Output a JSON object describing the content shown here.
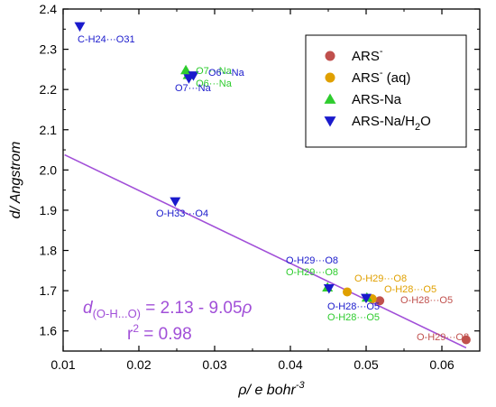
{
  "chart_data": {
    "type": "scatter",
    "xlim": [
      0.01,
      0.065
    ],
    "ylim": [
      1.55,
      2.4
    ],
    "x_ticks": [
      "0.01",
      "0.02",
      "0.03",
      "0.04",
      "0.05",
      "0.06"
    ],
    "y_ticks": [
      "1.6",
      "1.7",
      "1.8",
      "1.9",
      "2.0",
      "2.1",
      "2.2",
      "2.3",
      "2.4"
    ],
    "xlabel": "ρ/ e bohr",
    "xlabel_sup": "-3",
    "ylabel": "d/ Angstrom",
    "grid": false,
    "legend_position": "top-right",
    "series": [
      {
        "name": "ARS",
        "name_sup": "-",
        "name_sub": "",
        "name_after": "",
        "marker": "circle",
        "color": "#c0504d",
        "points": [
          {
            "x": 0.0518,
            "y": 1.675,
            "label": "O-H28···O5",
            "label_color": "#c0504d"
          },
          {
            "x": 0.0632,
            "y": 1.578,
            "label": "O-H29···O8",
            "label_color": "#c0504d"
          }
        ]
      },
      {
        "name": "ARS",
        "name_sup": "-",
        "name_sub": "",
        "name_after": " (aq)",
        "marker": "circle",
        "color": "#e0a000",
        "points": [
          {
            "x": 0.0475,
            "y": 1.697,
            "label": "O-H29···O8",
            "label_color": "#e0a000"
          },
          {
            "x": 0.0508,
            "y": 1.68,
            "label": "O-H28···O5",
            "label_color": "#e0a000"
          }
        ]
      },
      {
        "name": "ARS-Na",
        "name_sup": "",
        "name_sub": "",
        "name_after": "",
        "marker": "triangle-up",
        "color": "#2ecc2e",
        "points": [
          {
            "x": 0.0262,
            "y": 2.248,
            "label": "O7···Na",
            "label_color": "#2ecc2e"
          },
          {
            "x": 0.0265,
            "y": 2.236,
            "label": "O6···Na",
            "label_color": "#2ecc2e"
          },
          {
            "x": 0.0449,
            "y": 1.708,
            "label": "O-H29···O8",
            "label_color": "#2ecc2e"
          },
          {
            "x": 0.0501,
            "y": 1.683,
            "label": "O-H28···O5",
            "label_color": "#2ecc2e"
          }
        ]
      },
      {
        "name": "ARS-Na/H",
        "name_sup": "",
        "name_sub": "2",
        "name_after": "O",
        "marker": "triangle-down",
        "color": "#1a1acc",
        "points": [
          {
            "x": 0.0122,
            "y": 2.357,
            "label": "C-H24···O31",
            "label_color": "#1a1acc"
          },
          {
            "x": 0.0272,
            "y": 2.235,
            "label": "O6···Na",
            "label_color": "#1a1acc"
          },
          {
            "x": 0.0266,
            "y": 2.228,
            "label": "O7···Na",
            "label_color": "#1a1acc"
          },
          {
            "x": 0.0248,
            "y": 1.922,
            "label": "O-H33···O4",
            "label_color": "#1a1acc"
          },
          {
            "x": 0.0451,
            "y": 1.706,
            "label": "O-H29···O8",
            "label_color": "#1a1acc"
          },
          {
            "x": 0.05,
            "y": 1.682,
            "label": "O-H28···O5",
            "label_color": "#1a1acc"
          }
        ]
      }
    ],
    "fit": {
      "intercept": 2.13,
      "slope": -9.05,
      "x_range": [
        0.0102,
        0.0632
      ],
      "color": "#a14fd8",
      "equation_d": "d",
      "equation_sub": "(O-H...O)",
      "equation_rest": " = 2.13 - 9.05",
      "equation_var": "ρ",
      "r2_label": "r",
      "r2_sup": "2",
      "r2_value": " = 0.98"
    }
  }
}
